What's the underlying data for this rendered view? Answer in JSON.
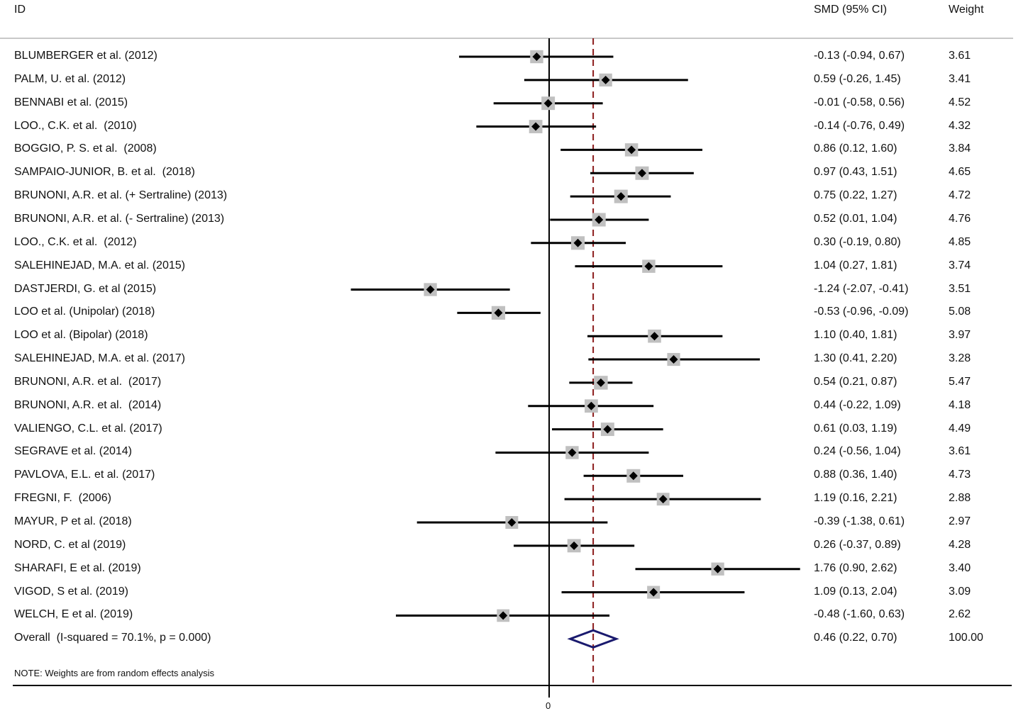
{
  "header": {
    "id_label": "ID",
    "smd_label": "SMD (95% CI)",
    "weight_label": "Weight"
  },
  "note": "NOTE: Weights are from random effects analysis",
  "axis_tick_label": "0",
  "chart_data": {
    "type": "forest",
    "studies": [
      {
        "id": "BLUMBERGER et al. (2012)",
        "smd": -0.13,
        "lo": -0.94,
        "hi": 0.67,
        "ci_text": "-0.13 (-0.94, 0.67)",
        "weight": "3.61"
      },
      {
        "id": "PALM, U. et al. (2012)",
        "smd": 0.59,
        "lo": -0.26,
        "hi": 1.45,
        "ci_text": "0.59 (-0.26, 1.45)",
        "weight": "3.41"
      },
      {
        "id": "BENNABI et al. (2015)",
        "smd": -0.01,
        "lo": -0.58,
        "hi": 0.56,
        "ci_text": "-0.01 (-0.58, 0.56)",
        "weight": "4.52"
      },
      {
        "id": "LOO., C.K. et al.  (2010)",
        "smd": -0.14,
        "lo": -0.76,
        "hi": 0.49,
        "ci_text": "-0.14 (-0.76, 0.49)",
        "weight": "4.32"
      },
      {
        "id": "BOGGIO, P. S. et al.  (2008)",
        "smd": 0.86,
        "lo": 0.12,
        "hi": 1.6,
        "ci_text": "0.86 (0.12, 1.60)",
        "weight": "3.84"
      },
      {
        "id": "SAMPAIO-JUNIOR, B. et al.  (2018)",
        "smd": 0.97,
        "lo": 0.43,
        "hi": 1.51,
        "ci_text": "0.97 (0.43, 1.51)",
        "weight": "4.65"
      },
      {
        "id": "BRUNONI, A.R. et al. (+ Sertraline) (2013)",
        "smd": 0.75,
        "lo": 0.22,
        "hi": 1.27,
        "ci_text": "0.75 (0.22, 1.27)",
        "weight": "4.72"
      },
      {
        "id": "BRUNONI, A.R. et al. (- Sertraline) (2013)",
        "smd": 0.52,
        "lo": 0.01,
        "hi": 1.04,
        "ci_text": "0.52 (0.01, 1.04)",
        "weight": "4.76"
      },
      {
        "id": "LOO., C.K. et al.  (2012)",
        "smd": 0.3,
        "lo": -0.19,
        "hi": 0.8,
        "ci_text": "0.30 (-0.19, 0.80)",
        "weight": "4.85"
      },
      {
        "id": "SALEHINEJAD, M.A. et al. (2015)",
        "smd": 1.04,
        "lo": 0.27,
        "hi": 1.81,
        "ci_text": "1.04 (0.27, 1.81)",
        "weight": "3.74"
      },
      {
        "id": "DASTJERDI, G. et al (2015)",
        "smd": -1.24,
        "lo": -2.07,
        "hi": -0.41,
        "ci_text": "-1.24 (-2.07, -0.41)",
        "weight": "3.51"
      },
      {
        "id": "LOO et al. (Unipolar) (2018)",
        "smd": -0.53,
        "lo": -0.96,
        "hi": -0.09,
        "ci_text": "-0.53 (-0.96, -0.09)",
        "weight": "5.08"
      },
      {
        "id": "LOO et al. (Bipolar) (2018)",
        "smd": 1.1,
        "lo": 0.4,
        "hi": 1.81,
        "ci_text": "1.10 (0.40, 1.81)",
        "weight": "3.97"
      },
      {
        "id": "SALEHINEJAD, M.A. et al. (2017)",
        "smd": 1.3,
        "lo": 0.41,
        "hi": 2.2,
        "ci_text": "1.30 (0.41, 2.20)",
        "weight": "3.28"
      },
      {
        "id": "BRUNONI, A.R. et al.  (2017)",
        "smd": 0.54,
        "lo": 0.21,
        "hi": 0.87,
        "ci_text": "0.54 (0.21, 0.87)",
        "weight": "5.47"
      },
      {
        "id": "BRUNONI, A.R. et al.  (2014)",
        "smd": 0.44,
        "lo": -0.22,
        "hi": 1.09,
        "ci_text": "0.44 (-0.22, 1.09)",
        "weight": "4.18"
      },
      {
        "id": "VALIENGO, C.L. et al. (2017)",
        "smd": 0.61,
        "lo": 0.03,
        "hi": 1.19,
        "ci_text": "0.61 (0.03, 1.19)",
        "weight": "4.49"
      },
      {
        "id": "SEGRAVE et al. (2014)",
        "smd": 0.24,
        "lo": -0.56,
        "hi": 1.04,
        "ci_text": "0.24 (-0.56, 1.04)",
        "weight": "3.61"
      },
      {
        "id": "PAVLOVA, E.L. et al. (2017)",
        "smd": 0.88,
        "lo": 0.36,
        "hi": 1.4,
        "ci_text": "0.88 (0.36, 1.40)",
        "weight": "4.73"
      },
      {
        "id": "FREGNI, F.  (2006)",
        "smd": 1.19,
        "lo": 0.16,
        "hi": 2.21,
        "ci_text": "1.19 (0.16, 2.21)",
        "weight": "2.88"
      },
      {
        "id": "MAYUR, P et al. (2018)",
        "smd": -0.39,
        "lo": -1.38,
        "hi": 0.61,
        "ci_text": "-0.39 (-1.38, 0.61)",
        "weight": "2.97"
      },
      {
        "id": "NORD, C. et al (2019)",
        "smd": 0.26,
        "lo": -0.37,
        "hi": 0.89,
        "ci_text": "0.26 (-0.37, 0.89)",
        "weight": "4.28"
      },
      {
        "id": "SHARAFI, E et al. (2019)",
        "smd": 1.76,
        "lo": 0.9,
        "hi": 2.62,
        "ci_text": "1.76 (0.90, 2.62)",
        "weight": "3.40"
      },
      {
        "id": "VIGOD, S et al. (2019)",
        "smd": 1.09,
        "lo": 0.13,
        "hi": 2.04,
        "ci_text": "1.09 (0.13, 2.04)",
        "weight": "3.09"
      },
      {
        "id": "WELCH, E et al. (2019)",
        "smd": -0.48,
        "lo": -1.6,
        "hi": 0.63,
        "ci_text": "-0.48 (-1.60, 0.63)",
        "weight": "2.62"
      }
    ],
    "overall": {
      "id": "Overall  (I-squared = 70.1%, p = 0.000)",
      "smd": 0.46,
      "lo": 0.22,
      "hi": 0.7,
      "ci_text": "0.46 (0.22, 0.70)",
      "weight": "100.00"
    },
    "null_line": 0,
    "colors": {
      "line": "#000000",
      "box": "#c0c0c0",
      "diamond": "#1a1a6e",
      "overall_line": "#8b1a1a"
    }
  }
}
